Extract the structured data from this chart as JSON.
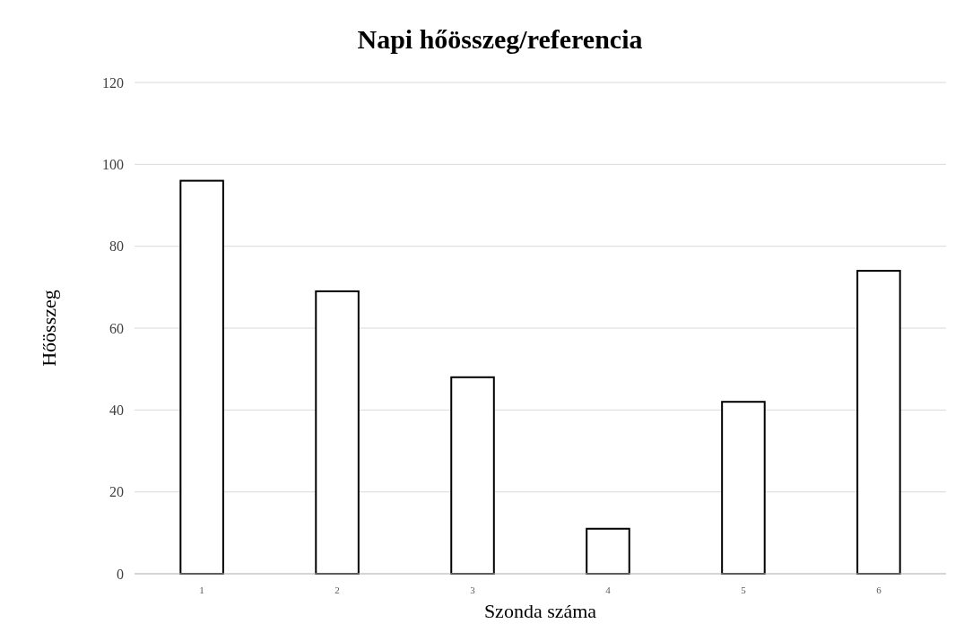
{
  "chart_data": {
    "type": "bar",
    "title": "Napi hőösszeg/referencia",
    "xlabel": "Szonda száma",
    "ylabel": "Hőösszeg",
    "categories": [
      "1",
      "2",
      "3",
      "4",
      "5",
      "6"
    ],
    "values": [
      96,
      69,
      48,
      11,
      42,
      74
    ],
    "color": "#ffffff",
    "ylim": [
      0,
      120
    ],
    "yticks": [
      0,
      20,
      40,
      60,
      80,
      100,
      120
    ],
    "grid": "y"
  }
}
